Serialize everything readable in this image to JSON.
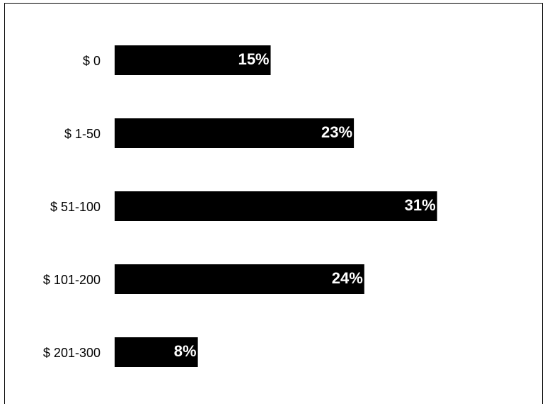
{
  "chart_data": {
    "type": "bar",
    "orientation": "horizontal",
    "categories": [
      "$ 0",
      "$ 1-50",
      "$ 51-100",
      "$ 101-200",
      "$ 201-300"
    ],
    "values": [
      15,
      23,
      31,
      24,
      8
    ],
    "value_labels": [
      "15%",
      "23%",
      "31%",
      "24%",
      "8%"
    ],
    "unit": "%",
    "bar_color": "#000000",
    "label_color": "#ffffff",
    "grid": false,
    "legend": "none"
  }
}
